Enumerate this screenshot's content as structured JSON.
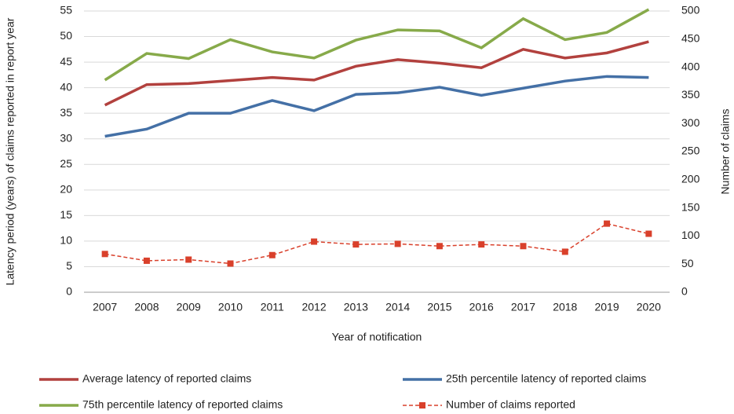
{
  "chart_data": {
    "type": "line",
    "xlabel": "Year of notification",
    "ylabel": "Latency period (years) of claims reported in report year",
    "y2label": "Number of claims",
    "categories": [
      "2007",
      "2008",
      "2009",
      "2010",
      "2011",
      "2012",
      "2013",
      "2014",
      "2015",
      "2016",
      "2017",
      "2018",
      "2019",
      "2020"
    ],
    "ylim": [
      0,
      55
    ],
    "yticks": [
      0,
      5,
      10,
      15,
      20,
      25,
      30,
      35,
      40,
      45,
      50,
      55
    ],
    "y2lim": [
      0,
      500
    ],
    "y2ticks": [
      0,
      50,
      100,
      150,
      200,
      250,
      300,
      350,
      400,
      450,
      500
    ],
    "grid": true,
    "legend": "bottom",
    "series": [
      {
        "name": "Average latency of reported claims",
        "color": "#b2413e",
        "line_style": "solid",
        "values": [
          36.6,
          40.6,
          40.8,
          41.4,
          42.0,
          41.5,
          44.2,
          45.5,
          44.8,
          43.9,
          47.5,
          45.8,
          46.8,
          49.0
        ]
      },
      {
        "name": "25th percentile latency of reported claims",
        "color": "#4470a6",
        "line_style": "solid",
        "values": [
          30.5,
          31.9,
          35.0,
          35.0,
          37.5,
          35.5,
          38.7,
          39.0,
          40.1,
          38.5,
          39.9,
          41.3,
          42.2,
          42.0
        ]
      },
      {
        "name": "75th percentile latency of reported claims",
        "color": "#87aa4a",
        "line_style": "solid",
        "values": [
          41.5,
          46.7,
          45.7,
          49.4,
          47.0,
          45.8,
          49.3,
          51.3,
          51.1,
          47.8,
          53.5,
          49.4,
          50.8,
          55.3
        ]
      },
      {
        "name": "Number of claims reported",
        "color": "#d9402b",
        "line_style": "dashed",
        "marker": "square",
        "axis": "y2",
        "values": [
          68,
          56,
          58,
          51,
          66,
          90,
          85,
          86,
          82,
          85,
          82,
          72,
          122,
          104
        ]
      }
    ]
  }
}
